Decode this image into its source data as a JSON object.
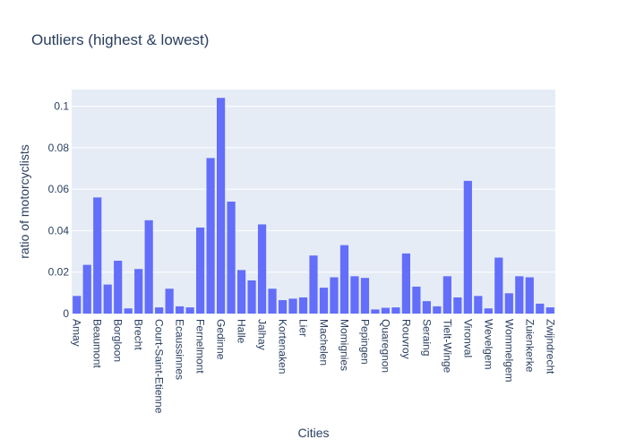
{
  "chart_data": {
    "type": "bar",
    "title": "Outliers (highest & lowest)",
    "xlabel": "Cities",
    "ylabel": "ratio of motorcyclists",
    "ylim": [
      0,
      0.108
    ],
    "yticks": [
      {
        "value": 0,
        "label": "0"
      },
      {
        "value": 0.02,
        "label": "0.02"
      },
      {
        "value": 0.04,
        "label": "0.04"
      },
      {
        "value": 0.06,
        "label": "0.06"
      },
      {
        "value": 0.08,
        "label": "0.08"
      },
      {
        "value": 0.1,
        "label": "0.1"
      }
    ],
    "bar_color": "#636efa",
    "plot_bg": "#e5ecf6",
    "grid": true,
    "categories": [
      "Amay",
      "",
      "Beaumont",
      "",
      "Borgloon",
      "",
      "Brecht",
      "",
      "Court-Saint-Etienne",
      "",
      "Ecaussinnes",
      "",
      "Fernelmont",
      "",
      "Gedinne",
      "",
      "Halle",
      "",
      "Jalhay",
      "",
      "Kortenaken",
      "",
      "Lier",
      "",
      "Machelen",
      "",
      "Momignies",
      "",
      "Pepingen",
      "",
      "Quaregnon",
      "",
      "Rouvroy",
      "",
      "Seraing",
      "",
      "Tielt-Winge",
      "",
      "Vironval",
      "",
      "Wevelgem",
      "",
      "Wommelgem",
      "",
      "Zuienkerke",
      "",
      "Zwijndrecht"
    ],
    "values": [
      0.0085,
      0.0235,
      0.056,
      0.014,
      0.0255,
      0.0025,
      0.0215,
      0.045,
      0.003,
      0.012,
      0.0035,
      0.003,
      0.0415,
      0.075,
      0.104,
      0.054,
      0.021,
      0.016,
      0.043,
      0.012,
      0.0065,
      0.0072,
      0.0078,
      0.028,
      0.0125,
      0.0175,
      0.033,
      0.018,
      0.0172,
      0.002,
      0.0028,
      0.003,
      0.029,
      0.013,
      0.006,
      0.0035,
      0.018,
      0.0078,
      0.064,
      0.0085,
      0.0025,
      0.027,
      0.0098,
      0.018,
      0.0175,
      0.0048,
      0.003
    ]
  }
}
